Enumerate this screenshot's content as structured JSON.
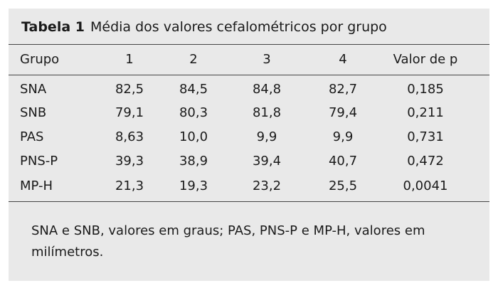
{
  "header": {
    "label": "Tabela 1",
    "title": "Média dos valores cefalométricos por grupo"
  },
  "table": {
    "columns": [
      "Grupo",
      "1",
      "2",
      "3",
      "4",
      "Valor de p"
    ],
    "rows": [
      [
        "SNA",
        "82,5",
        "84,5",
        "84,8",
        "82,7",
        "0,185"
      ],
      [
        "SNB",
        "79,1",
        "80,3",
        "81,8",
        "79,4",
        "0,211"
      ],
      [
        "PAS",
        "8,63",
        "10,0",
        "9,9",
        "9,9",
        "0,731"
      ],
      [
        "PNS-P",
        "39,3",
        "38,9",
        "39,4",
        "40,7",
        "0,472"
      ],
      [
        "MP-H",
        "21,3",
        "19,3",
        "23,2",
        "25,5",
        "0,0041"
      ]
    ]
  },
  "footnote": "SNA e SNB, valores em graus; PAS, PNS-P e MP-H, valores em milímetros."
}
